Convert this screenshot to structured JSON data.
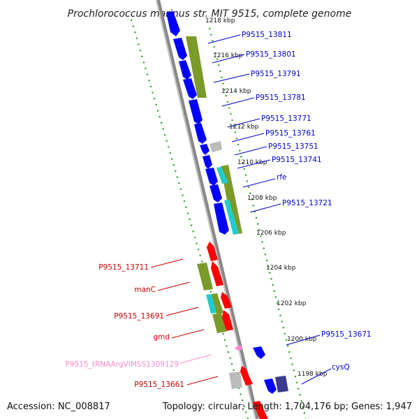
{
  "title": "Prochlorococcus marinus str. MIT 9515, complete genome",
  "accession": "Accession: NC_008817",
  "topology": "Topology: circular; Length: 1,704,176 bp; Genes: 1,947",
  "colors": {
    "forward_cds": "#0000ff",
    "reverse_cds": "#ff0000",
    "forward_label": "#0000cc",
    "reverse_label": "#cc0000",
    "trna_label": "#ff88cc",
    "gc_olive": "#7a9a2a",
    "gc_cyan": "#22cccc",
    "backbone": "#888888",
    "dotted_ring": "#229922"
  },
  "ticks": [
    "1218 kbp",
    "1216 kbp",
    "1214 kbp",
    "1212 kbp",
    "1210 kbp",
    "1208 kbp",
    "1206 kbp",
    "1204 kbp",
    "1202 kbp",
    "1200 kbp",
    "1198 kbp"
  ],
  "forward_labels": [
    "P9515_13811",
    "P9515_13801",
    "P9515_13791",
    "P9515_13781",
    "P9515_13771",
    "P9515_13761",
    "P9515_13751",
    "P9515_13741",
    "rfe",
    "P9515_13721",
    "P9515_13671",
    "cysQ"
  ],
  "reverse_labels": [
    "P9515_13711",
    "manC",
    "P9515_13691",
    "gmd",
    "P9515_tRNAArgVIMSS1309129",
    "P9515_13661"
  ]
}
